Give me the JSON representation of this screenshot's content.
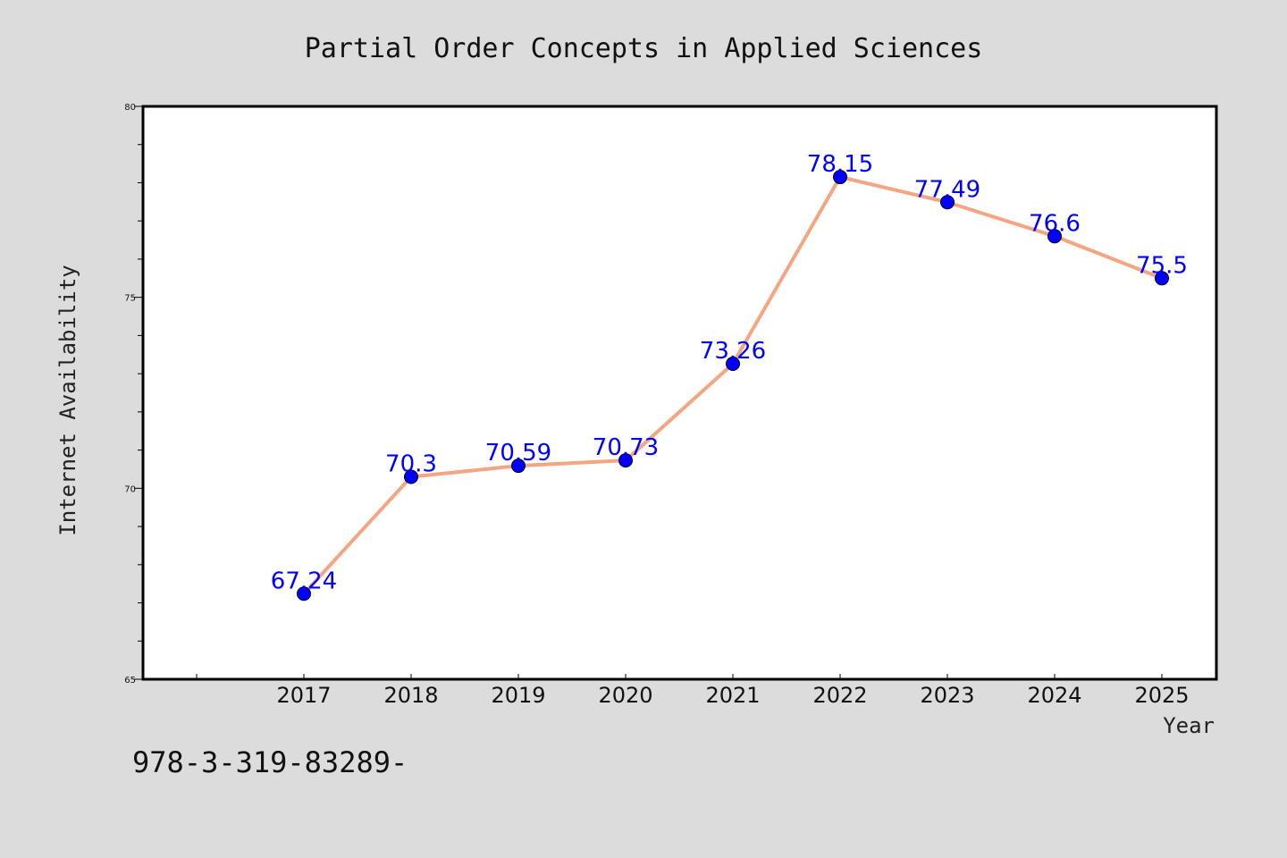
{
  "chart_data": {
    "type": "line",
    "title": "Partial Order Concepts in Applied Sciences",
    "xlabel": "Year",
    "ylabel": "Internet Availability",
    "categories": [
      "2017",
      "2018",
      "2019",
      "2020",
      "2021",
      "2022",
      "2023",
      "2024",
      "2025"
    ],
    "series": [
      {
        "values": [
          67.24,
          70.3,
          70.59,
          70.73,
          73.26,
          78.15,
          77.49,
          76.6,
          75.5
        ],
        "data_labels": [
          "67.24",
          "70.3",
          "70.59",
          "70.73",
          "73.26",
          "78.15",
          "77.49",
          "76.6",
          "75.5"
        ]
      }
    ],
    "ylim": [
      65,
      80
    ],
    "yticks": [
      65,
      70,
      75,
      80
    ],
    "ytick_labels": [
      "65",
      "70",
      "75",
      "80"
    ],
    "grid": false,
    "legend": "none",
    "line_color": "#f4a582",
    "marker_color": "#0000ff",
    "label_color": "#0000ff"
  },
  "footer": {
    "text": "978-3-319-83289-"
  }
}
